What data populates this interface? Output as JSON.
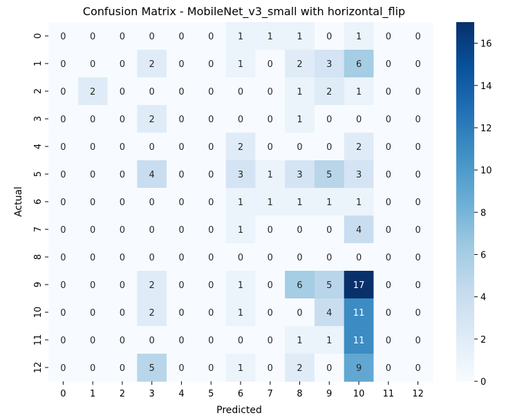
{
  "chart_data": {
    "type": "heatmap",
    "title": "Confusion Matrix - MobileNet_v3_small with horizontal_flip",
    "xlabel": "Predicted",
    "ylabel": "Actual",
    "x_categories": [
      "0",
      "1",
      "2",
      "3",
      "4",
      "5",
      "6",
      "7",
      "8",
      "9",
      "10",
      "11",
      "12"
    ],
    "y_categories": [
      "0",
      "1",
      "2",
      "3",
      "4",
      "5",
      "6",
      "7",
      "8",
      "9",
      "10",
      "11",
      "12"
    ],
    "values": [
      [
        0,
        0,
        0,
        0,
        0,
        0,
        1,
        1,
        1,
        0,
        1,
        0,
        0
      ],
      [
        0,
        0,
        0,
        2,
        0,
        0,
        1,
        0,
        2,
        3,
        6,
        0,
        0
      ],
      [
        0,
        2,
        0,
        0,
        0,
        0,
        0,
        0,
        1,
        2,
        1,
        0,
        0
      ],
      [
        0,
        0,
        0,
        2,
        0,
        0,
        0,
        0,
        1,
        0,
        0,
        0,
        0
      ],
      [
        0,
        0,
        0,
        0,
        0,
        0,
        2,
        0,
        0,
        0,
        2,
        0,
        0
      ],
      [
        0,
        0,
        0,
        4,
        0,
        0,
        3,
        1,
        3,
        5,
        3,
        0,
        0
      ],
      [
        0,
        0,
        0,
        0,
        0,
        0,
        1,
        1,
        1,
        1,
        1,
        0,
        0
      ],
      [
        0,
        0,
        0,
        0,
        0,
        0,
        1,
        0,
        0,
        0,
        4,
        0,
        0
      ],
      [
        0,
        0,
        0,
        0,
        0,
        0,
        0,
        0,
        0,
        0,
        0,
        0,
        0
      ],
      [
        0,
        0,
        0,
        2,
        0,
        0,
        1,
        0,
        6,
        5,
        17,
        0,
        0
      ],
      [
        0,
        0,
        0,
        2,
        0,
        0,
        1,
        0,
        0,
        4,
        11,
        0,
        0
      ],
      [
        0,
        0,
        0,
        0,
        0,
        0,
        0,
        0,
        1,
        1,
        11,
        0,
        0
      ],
      [
        0,
        0,
        0,
        5,
        0,
        0,
        1,
        0,
        2,
        0,
        9,
        0,
        0
      ]
    ],
    "colormap": "Blues",
    "colorbar": {
      "min": 0,
      "max": 17,
      "ticks": [
        0,
        2,
        4,
        6,
        8,
        10,
        12,
        14,
        16
      ]
    },
    "annotations": true,
    "grid": false
  }
}
